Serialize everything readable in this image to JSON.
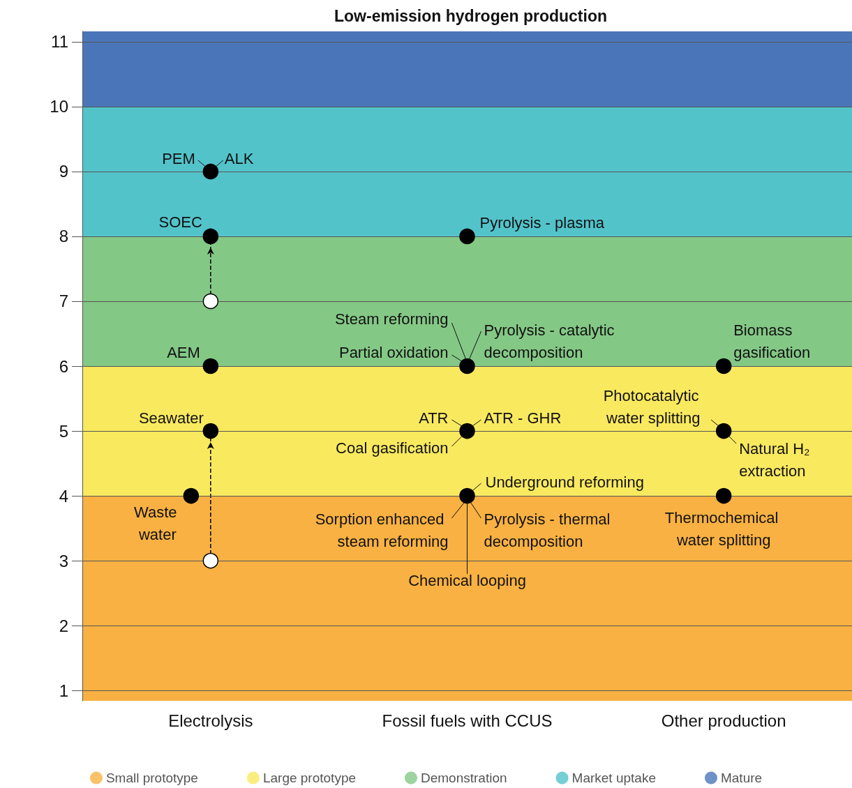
{
  "chart_data": {
    "type": "scatter",
    "title": "Low-emission hydrogen production",
    "categories": [
      "Electrolysis",
      "Fossil fuels with CCUS",
      "Other production"
    ],
    "ylim": [
      0.84,
      11.16
    ],
    "yticks": [
      1,
      2,
      3,
      4,
      5,
      6,
      7,
      8,
      9,
      10,
      11
    ],
    "grid": "y",
    "legend": "bottom",
    "bands": [
      {
        "axis": "y",
        "from": 0.84,
        "to": 4,
        "label": "Small prototype",
        "color": "#f8b142"
      },
      {
        "axis": "y",
        "from": 4,
        "to": 6,
        "label": "Large prototype",
        "color": "#f9e95f"
      },
      {
        "axis": "y",
        "from": 6,
        "to": 8,
        "label": "Demonstration",
        "color": "#84c886"
      },
      {
        "axis": "y",
        "from": 8,
        "to": 10,
        "label": "Market uptake",
        "color": "#53c3ca"
      },
      {
        "axis": "y",
        "from": 10,
        "to": 11.16,
        "label": "Mature",
        "color": "#4a76b9"
      }
    ],
    "series": [
      {
        "type": "line",
        "x": [
          "Electrolysis",
          "Electrolysis"
        ],
        "values": [
          7,
          8
        ],
        "color": "#000000",
        "line_style": "dashed"
      },
      {
        "type": "line",
        "x": [
          "Electrolysis",
          "Electrolysis"
        ],
        "values": [
          3,
          5
        ],
        "color": "#000000",
        "line_style": "dashed"
      },
      {
        "marker": "circle",
        "color": "#ffffff",
        "x": [
          "Electrolysis",
          "Electrolysis"
        ],
        "values": [
          7,
          3
        ]
      },
      {
        "marker": "circle",
        "color": "#000000",
        "x": [
          "Electrolysis",
          "Electrolysis",
          "Electrolysis",
          "Electrolysis",
          "Electrolysis",
          "Fossil fuels with CCUS",
          "Fossil fuels with CCUS",
          "Fossil fuels with CCUS",
          "Fossil fuels with CCUS",
          "Other production",
          "Other production",
          "Other production"
        ],
        "values": [
          9,
          8,
          6,
          5,
          4,
          8,
          6,
          5,
          4,
          6,
          5,
          4
        ]
      }
    ],
    "annotations": [
      {
        "text": "PEM",
        "x": "Electrolysis",
        "y": 9
      },
      {
        "text": "ALK",
        "x": "Electrolysis",
        "y": 9
      },
      {
        "text": "SOEC",
        "x": "Electrolysis",
        "y": 8
      },
      {
        "text": "AEM",
        "x": "Electrolysis",
        "y": 6
      },
      {
        "text": "Seawater",
        "x": "Electrolysis",
        "y": 5
      },
      {
        "text": "Waste water",
        "x": "Electrolysis",
        "y": 4
      },
      {
        "text": "Pyrolysis - plasma",
        "x": "Fossil fuels with CCUS",
        "y": 8
      },
      {
        "text": "Steam reforming",
        "x": "Fossil fuels with CCUS",
        "y": 6
      },
      {
        "text": "Partial oxidation",
        "x": "Fossil fuels with CCUS",
        "y": 6
      },
      {
        "text": "Pyrolysis - catalytic decomposition",
        "x": "Fossil fuels with CCUS",
        "y": 6
      },
      {
        "text": "ATR",
        "x": "Fossil fuels with CCUS",
        "y": 5
      },
      {
        "text": "ATR - GHR",
        "x": "Fossil fuels with CCUS",
        "y": 5
      },
      {
        "text": "Coal gasification",
        "x": "Fossil fuels with CCUS",
        "y": 5
      },
      {
        "text": "Underground reforming",
        "x": "Fossil fuels with CCUS",
        "y": 4
      },
      {
        "text": "Sorption enhanced steam reforming",
        "x": "Fossil fuels with CCUS",
        "y": 4
      },
      {
        "text": "Pyrolysis - thermal decomposition",
        "x": "Fossil fuels with CCUS",
        "y": 4
      },
      {
        "text": "Chemical looping",
        "x": "Fossil fuels with CCUS",
        "y": 4
      },
      {
        "text": "Biomass gasification",
        "x": "Other production",
        "y": 6
      },
      {
        "text": "Photocatalytic water splitting",
        "x": "Other production",
        "y": 5
      },
      {
        "text": "Natural H₂ extraction",
        "x": "Other production",
        "y": 5
      },
      {
        "text": "Thermochemical water splitting",
        "x": "Other production",
        "y": 4
      }
    ]
  }
}
